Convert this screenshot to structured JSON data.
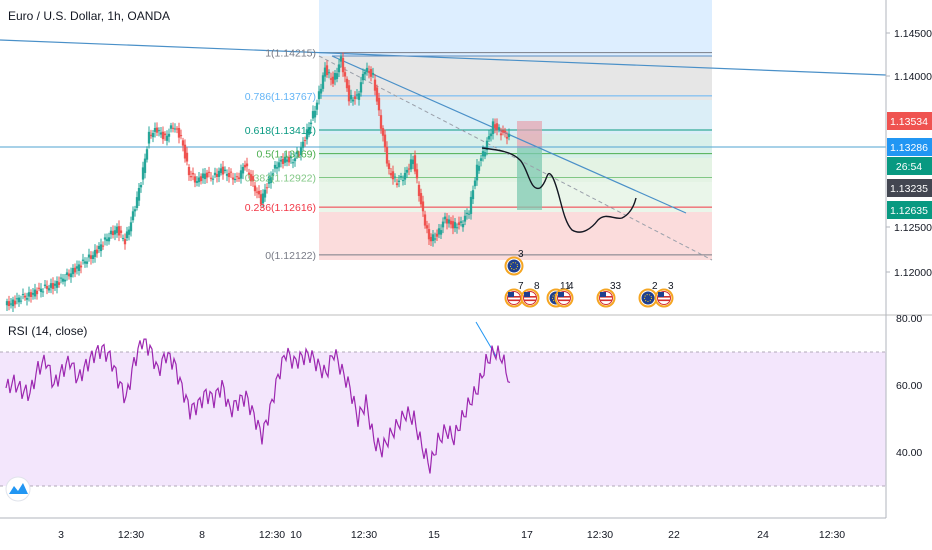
{
  "title": "Euro / U.S. Dollar, 1h, OANDA",
  "colors": {
    "candle_up": "#26a69a",
    "candle_down": "#ef5350",
    "trend": "#4a90c8",
    "rsi_line": "#9c27b0",
    "rsi_band": "#f3e6fc",
    "last_price": "#ef5350",
    "price_blue": "#2196f3",
    "price_green": "#089981",
    "price_dark": "#434651"
  },
  "price_axis": {
    "ticks": [
      "1.14500",
      "1.14000",
      "1.12500",
      "1.12000"
    ],
    "tags": [
      {
        "label": "1.13534",
        "color": "#ef5350",
        "value": 1.13534
      },
      {
        "label": "1.13286",
        "color": "#2196f3",
        "value": 1.13286
      },
      {
        "label": "26:54",
        "color": "#089981",
        "value": 1.13075
      },
      {
        "label": "1.13235",
        "color": "#434651",
        "value": 1.1288
      },
      {
        "label": "1.12635",
        "color": "#089981",
        "value": 1.12635
      }
    ]
  },
  "fib_levels": [
    {
      "label": "1(1.14215)",
      "value": 1.14215,
      "color": "#787b86"
    },
    {
      "label": "0.786(1.13767)",
      "value": 1.13767,
      "color": "#64b5f6"
    },
    {
      "label": "0.618(1.13414)",
      "value": 1.13414,
      "color": "#089981"
    },
    {
      "label": "0.5(1.13169)",
      "value": 1.13169,
      "color": "#4caf50"
    },
    {
      "label": "0.382(1.12922)",
      "value": 1.12922,
      "color": "#81c784"
    },
    {
      "label": "0.236(1.12616)",
      "value": 1.12616,
      "color": "#f23645"
    },
    {
      "label": "0(1.12122)",
      "value": 1.12122,
      "color": "#787b86"
    }
  ],
  "rsi": {
    "title": "RSI (14, close)",
    "ticks": [
      "80.00",
      "60.00",
      "40.00"
    ],
    "upper": 70,
    "lower": 30
  },
  "time_axis": [
    "3",
    "12:30",
    "8",
    "12:30",
    "10",
    "12:30",
    "15",
    "17",
    "12:30",
    "22",
    "24",
    "12:30"
  ],
  "events": [
    {
      "label": "3"
    },
    {
      "label": "7"
    },
    {
      "label": "8"
    },
    {
      "label": "11"
    },
    {
      "label": "4"
    },
    {
      "label": "33"
    },
    {
      "label": "2"
    },
    {
      "label": "3"
    }
  ],
  "chart_data": {
    "type": "line",
    "series": [
      {
        "x": [
          0,
          8,
          16,
          24,
          32,
          40,
          48,
          56,
          64,
          72,
          80,
          88,
          96,
          104,
          112,
          120,
          128,
          136,
          144,
          152,
          160,
          168,
          176,
          184,
          192,
          200,
          208,
          216,
          224,
          232,
          240,
          248,
          256,
          264,
          272,
          280,
          288,
          296,
          304,
          312,
          320,
          328,
          336,
          344,
          352,
          360,
          368,
          376,
          384,
          392,
          400,
          408,
          416,
          424,
          432,
          440,
          448,
          456,
          464,
          472,
          480,
          488,
          496,
          504
        ],
        "y": [
          1.116,
          1.1163,
          1.1168,
          1.117,
          1.1175,
          1.1178,
          1.118,
          1.1186,
          1.1192,
          1.1199,
          1.1206,
          1.1212,
          1.1222,
          1.1232,
          1.1239,
          1.1226,
          1.1254,
          1.1288,
          1.1336,
          1.1342,
          1.1333,
          1.1346,
          1.1334,
          1.1296,
          1.1288,
          1.1296,
          1.1292,
          1.13,
          1.1295,
          1.129,
          1.1306,
          1.1285,
          1.1268,
          1.129,
          1.1306,
          1.1311,
          1.131,
          1.1322,
          1.1345,
          1.137,
          1.1405,
          1.1391,
          1.1415,
          1.1374,
          1.1375,
          1.1405,
          1.1397,
          1.1346,
          1.1298,
          1.1287,
          1.1295,
          1.1312,
          1.1264,
          1.1228,
          1.1232,
          1.125,
          1.1242,
          1.1244,
          1.1258,
          1.1302,
          1.1322,
          1.1347,
          1.1339,
          1.1335
        ]
      }
    ],
    "ylim": [
      1.1153,
      1.1476
    ],
    "rsi": {
      "x": [
        0,
        8,
        16,
        24,
        32,
        40,
        48,
        56,
        64,
        72,
        80,
        88,
        96,
        104,
        112,
        120,
        128,
        136,
        144,
        152,
        160,
        168,
        176,
        184,
        192,
        200,
        208,
        216,
        224,
        232,
        240,
        248,
        256,
        264,
        272,
        280,
        288,
        296,
        304,
        312,
        320,
        328,
        336,
        344,
        352,
        360,
        368,
        376,
        384,
        392,
        400,
        408,
        416,
        424,
        432,
        440,
        448,
        456,
        464,
        472,
        480,
        488,
        496,
        504
      ],
      "y": [
        55,
        57,
        54,
        53,
        62,
        65,
        56,
        61,
        65,
        58,
        63,
        67,
        69,
        66,
        58,
        51,
        64,
        72,
        69,
        61,
        67,
        64,
        55,
        47,
        49,
        53,
        51,
        56,
        47,
        50,
        52,
        45,
        38,
        47,
        59,
        68,
        64,
        66,
        67,
        63,
        60,
        68,
        61,
        55,
        44,
        50,
        36,
        33,
        38,
        42,
        46,
        44,
        34,
        27,
        36,
        40,
        37,
        44,
        50,
        55,
        64,
        68,
        66,
        57
      ],
      "ylim": [
        0,
        80
      ]
    }
  }
}
